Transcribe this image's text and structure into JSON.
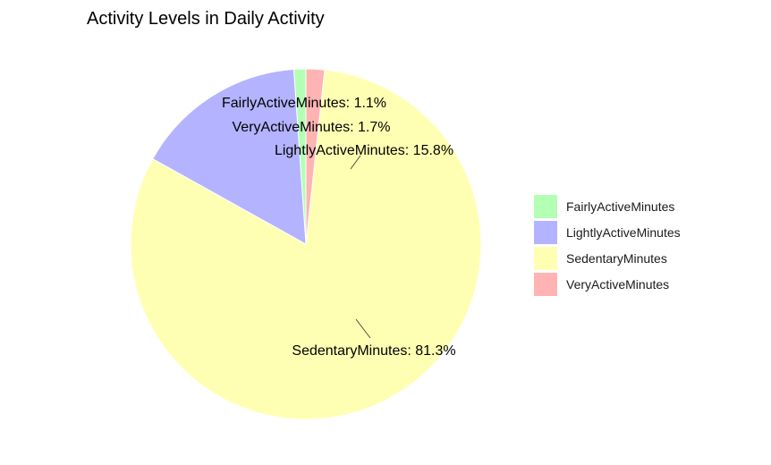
{
  "chart_data": {
    "type": "pie",
    "title": "Activity Levels in Daily Activity",
    "slices": [
      {
        "name": "FairlyActiveMinutes",
        "value": 1.1,
        "color": "#B3FFB3"
      },
      {
        "name": "LightlyActiveMinutes",
        "value": 15.8,
        "color": "#B3B3FF"
      },
      {
        "name": "SedentaryMinutes",
        "value": 81.3,
        "color": "#FFFFB3"
      },
      {
        "name": "VeryActiveMinutes",
        "value": 1.7,
        "color": "#FFB3B3"
      }
    ],
    "value_suffix": "%",
    "legend_position": "right"
  }
}
